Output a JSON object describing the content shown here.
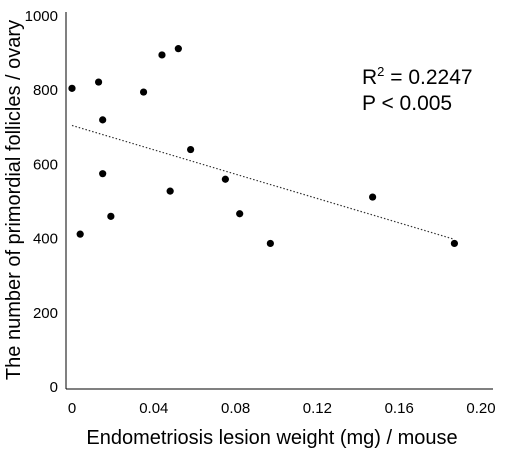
{
  "chart_data": {
    "type": "scatter",
    "title": "",
    "xlabel": "Endometriosis lesion weight (mg) / mouse",
    "ylabel": "The number of primordial  follicles / ovary",
    "xlim": [
      0,
      0.2
    ],
    "ylim": [
      0,
      1000
    ],
    "x_ticks": [
      "0",
      "0.04",
      "0.08",
      "0.12",
      "0.16",
      "0.20"
    ],
    "y_ticks": [
      "0",
      "200",
      "400",
      "600",
      "800",
      "1000"
    ],
    "grid": false,
    "points": [
      {
        "x": 0.0,
        "y": 805
      },
      {
        "x": 0.004,
        "y": 412
      },
      {
        "x": 0.013,
        "y": 822
      },
      {
        "x": 0.015,
        "y": 720
      },
      {
        "x": 0.015,
        "y": 575
      },
      {
        "x": 0.019,
        "y": 460
      },
      {
        "x": 0.035,
        "y": 795
      },
      {
        "x": 0.044,
        "y": 895
      },
      {
        "x": 0.048,
        "y": 528
      },
      {
        "x": 0.052,
        "y": 912
      },
      {
        "x": 0.058,
        "y": 640
      },
      {
        "x": 0.075,
        "y": 560
      },
      {
        "x": 0.082,
        "y": 467
      },
      {
        "x": 0.097,
        "y": 387
      },
      {
        "x": 0.147,
        "y": 512
      },
      {
        "x": 0.187,
        "y": 387
      }
    ],
    "trendline": {
      "x": [
        0.0,
        0.187
      ],
      "y": [
        705,
        398
      ],
      "style": "dotted"
    },
    "annotations": {
      "r2_label": "R",
      "r2_sup": "2",
      "r2_value": " = 0.2247",
      "p_value": "P < 0.005"
    }
  }
}
